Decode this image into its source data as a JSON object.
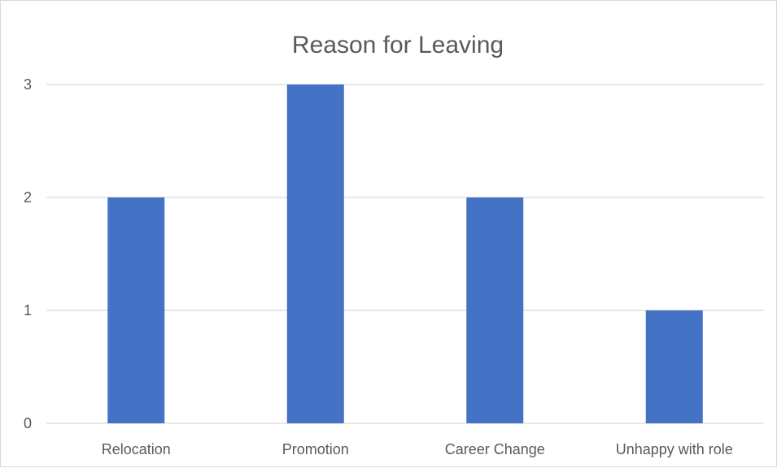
{
  "chart_data": {
    "type": "bar",
    "title": "Reason for Leaving",
    "categories": [
      "Relocation",
      "Promotion",
      "Career Change",
      "Unhappy with role"
    ],
    "values": [
      2,
      3,
      2,
      1
    ],
    "yticks": [
      "0",
      "1",
      "2",
      "3"
    ],
    "ylim": [
      0,
      3
    ],
    "xlabel": "",
    "ylabel": "",
    "grid": true,
    "legend": "none",
    "bar_color": "#4472C4"
  }
}
